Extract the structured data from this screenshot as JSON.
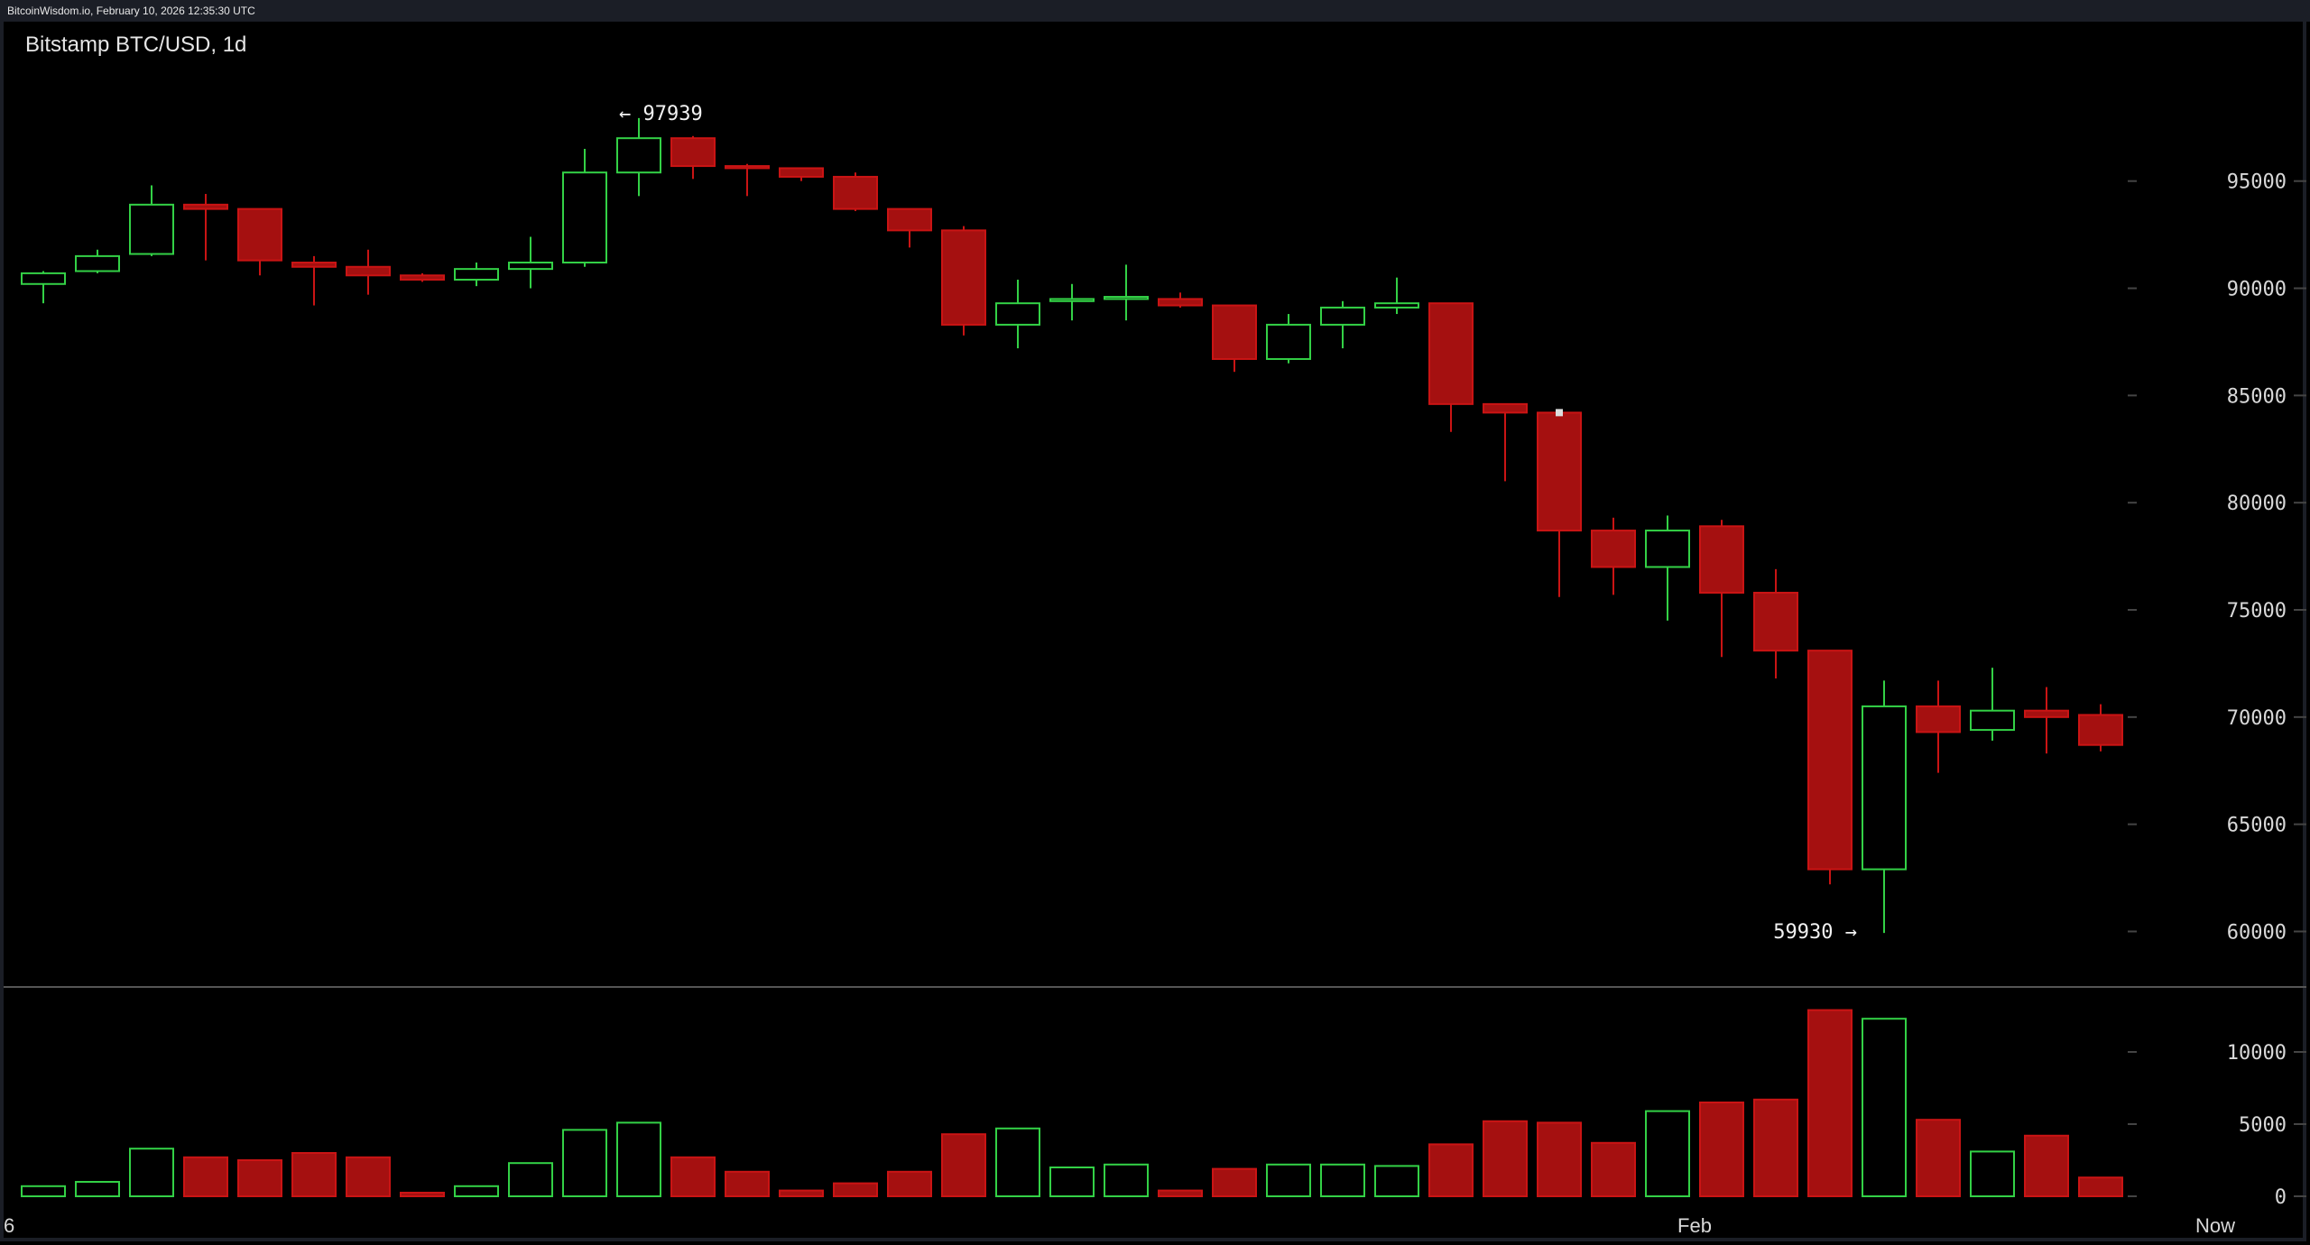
{
  "header": {
    "status_line": "BitcoinWisdom.io, February 10, 2026 12:35:30 UTC",
    "title": "Bitstamp BTC/USD, 1d"
  },
  "colors": {
    "up": "#33d146",
    "down": "#ca1414",
    "down_fill": "#a51010",
    "grid_tick": "#444444",
    "separator": "#555555",
    "text": "#d8d8d8"
  },
  "chart_data": [
    {
      "type": "candlestick",
      "title": "Bitstamp BTC/USD, 1d",
      "ylim": [
        58000,
        100500
      ],
      "yticks": [
        95000,
        90000,
        85000,
        80000,
        75000,
        70000,
        65000,
        60000
      ],
      "annotations": {
        "high_label": "← 97939",
        "high_value": 97939,
        "high_index": 11,
        "low_label": "59930 →",
        "low_value": 59930,
        "low_index": 34
      },
      "candles": [
        {
          "o": 90200,
          "h": 90800,
          "l": 89300,
          "c": 90700
        },
        {
          "o": 90800,
          "h": 91800,
          "l": 90700,
          "c": 91500
        },
        {
          "o": 91600,
          "h": 94800,
          "l": 91500,
          "c": 93900
        },
        {
          "o": 93900,
          "h": 94400,
          "l": 91300,
          "c": 93700
        },
        {
          "o": 93700,
          "h": 93700,
          "l": 90600,
          "c": 91300
        },
        {
          "o": 91200,
          "h": 91500,
          "l": 89200,
          "c": 91000
        },
        {
          "o": 91000,
          "h": 91800,
          "l": 89700,
          "c": 90600
        },
        {
          "o": 90600,
          "h": 90700,
          "l": 90300,
          "c": 90400
        },
        {
          "o": 90400,
          "h": 91200,
          "l": 90100,
          "c": 90900
        },
        {
          "o": 90900,
          "h": 92400,
          "l": 90000,
          "c": 91200
        },
        {
          "o": 91200,
          "h": 96500,
          "l": 91000,
          "c": 95400
        },
        {
          "o": 95400,
          "h": 97939,
          "l": 94300,
          "c": 97000
        },
        {
          "o": 97000,
          "h": 97100,
          "l": 95100,
          "c": 95700
        },
        {
          "o": 95700,
          "h": 95800,
          "l": 94300,
          "c": 95600
        },
        {
          "o": 95600,
          "h": 95600,
          "l": 95000,
          "c": 95200
        },
        {
          "o": 95200,
          "h": 95400,
          "l": 93600,
          "c": 93700
        },
        {
          "o": 93700,
          "h": 93700,
          "l": 91900,
          "c": 92700
        },
        {
          "o": 92700,
          "h": 92900,
          "l": 87800,
          "c": 88300
        },
        {
          "o": 88300,
          "h": 90400,
          "l": 87200,
          "c": 89300
        },
        {
          "o": 89400,
          "h": 90200,
          "l": 88500,
          "c": 89500
        },
        {
          "o": 89500,
          "h": 91100,
          "l": 88500,
          "c": 89600
        },
        {
          "o": 89500,
          "h": 89800,
          "l": 89100,
          "c": 89200
        },
        {
          "o": 89200,
          "h": 89200,
          "l": 86100,
          "c": 86700
        },
        {
          "o": 86700,
          "h": 88800,
          "l": 86500,
          "c": 88300
        },
        {
          "o": 88300,
          "h": 89400,
          "l": 87200,
          "c": 89100
        },
        {
          "o": 89100,
          "h": 90500,
          "l": 88800,
          "c": 89300
        },
        {
          "o": 89300,
          "h": 89300,
          "l": 83300,
          "c": 84600
        },
        {
          "o": 84600,
          "h": 84600,
          "l": 81000,
          "c": 84200
        },
        {
          "o": 84200,
          "h": 84200,
          "l": 75600,
          "c": 78700
        },
        {
          "o": 78700,
          "h": 79300,
          "l": 75700,
          "c": 77000
        },
        {
          "o": 77000,
          "h": 79400,
          "l": 74500,
          "c": 78700
        },
        {
          "o": 78900,
          "h": 79200,
          "l": 72800,
          "c": 75800
        },
        {
          "o": 75800,
          "h": 76900,
          "l": 71800,
          "c": 73100
        },
        {
          "o": 73100,
          "h": 73100,
          "l": 62200,
          "c": 62900
        },
        {
          "o": 62900,
          "h": 71700,
          "l": 59930,
          "c": 70500
        },
        {
          "o": 70500,
          "h": 71700,
          "l": 67400,
          "c": 69300
        },
        {
          "o": 69400,
          "h": 72300,
          "l": 68900,
          "c": 70300
        },
        {
          "o": 70300,
          "h": 71400,
          "l": 68300,
          "c": 70000
        },
        {
          "o": 70100,
          "h": 70600,
          "l": 68400,
          "c": 68700
        }
      ]
    },
    {
      "type": "bar",
      "title": "",
      "ylim": [
        0,
        13500
      ],
      "yticks": [
        10000,
        5000,
        0
      ],
      "values": [
        700,
        1000,
        3300,
        2700,
        2500,
        3000,
        2700,
        250,
        700,
        2300,
        4600,
        5100,
        2700,
        1700,
        400,
        900,
        1700,
        4300,
        4700,
        2000,
        2200,
        400,
        1900,
        2200,
        2200,
        2100,
        3600,
        5200,
        5100,
        3700,
        5900,
        6500,
        6700,
        12900,
        12300,
        5300,
        3100,
        4200,
        1300
      ]
    }
  ],
  "time_axis": {
    "labels": [
      {
        "text": "6",
        "index": 0
      },
      {
        "text": "Feb",
        "index": 30.5
      },
      {
        "text": "Now",
        "index": 40
      }
    ]
  }
}
